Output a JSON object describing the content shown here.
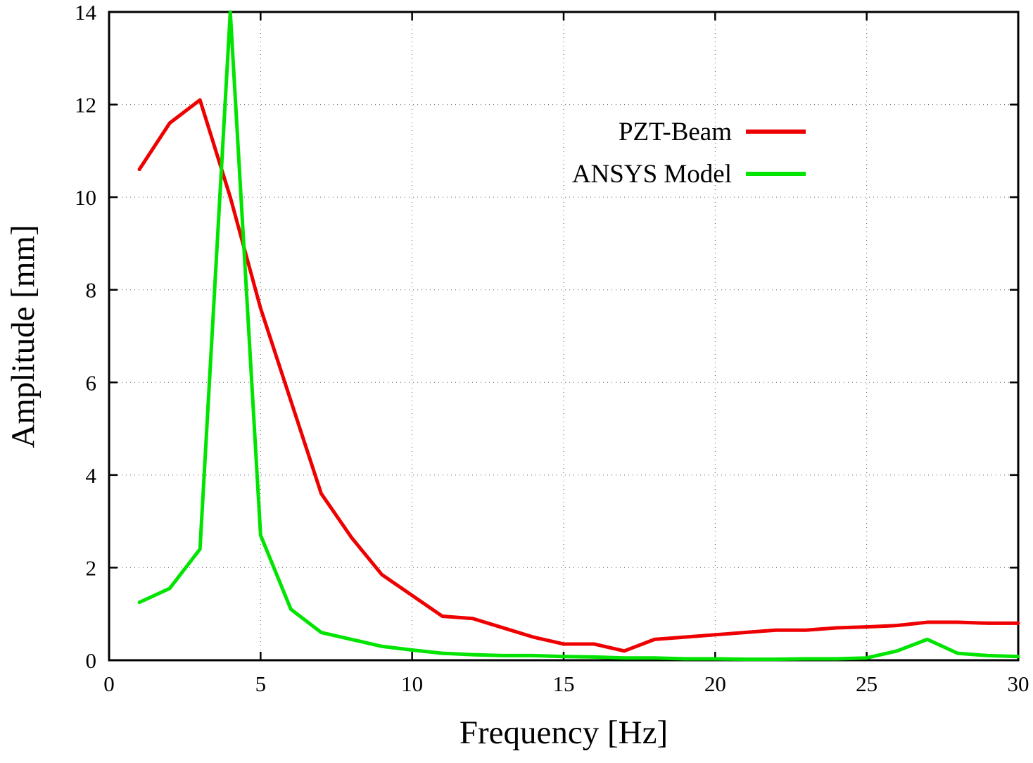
{
  "chart_data": {
    "type": "line",
    "title": "",
    "xlabel": "Frequency [Hz]",
    "ylabel": "Amplitude [mm]",
    "xlim": [
      0,
      30
    ],
    "ylim": [
      0,
      14
    ],
    "xticks": [
      0,
      5,
      10,
      15,
      20,
      25,
      30
    ],
    "yticks": [
      0,
      2,
      4,
      6,
      8,
      10,
      12,
      14
    ],
    "grid": true,
    "legend_position": "top-right-inside",
    "x": [
      1,
      2,
      3,
      4,
      5,
      6,
      7,
      8,
      9,
      10,
      11,
      12,
      13,
      14,
      15,
      16,
      17,
      18,
      19,
      20,
      21,
      22,
      23,
      24,
      25,
      26,
      27,
      28,
      29,
      30
    ],
    "series": [
      {
        "name": "PZT-Beam",
        "color": "#ee0000",
        "values": [
          10.6,
          11.6,
          12.1,
          10.0,
          7.6,
          5.6,
          3.6,
          2.65,
          1.85,
          1.4,
          0.95,
          0.9,
          0.7,
          0.5,
          0.35,
          0.35,
          0.2,
          0.45,
          0.5,
          0.55,
          0.6,
          0.65,
          0.65,
          0.7,
          0.72,
          0.75,
          0.82,
          0.82,
          0.8,
          0.8
        ]
      },
      {
        "name": "ANSYS Model",
        "color": "#00e400",
        "values": [
          1.25,
          1.55,
          2.4,
          14.0,
          2.7,
          1.1,
          0.6,
          0.45,
          0.3,
          0.22,
          0.15,
          0.12,
          0.1,
          0.1,
          0.08,
          0.07,
          0.05,
          0.05,
          0.03,
          0.03,
          0.02,
          0.02,
          0.03,
          0.03,
          0.05,
          0.2,
          0.45,
          0.15,
          0.1,
          0.08
        ]
      }
    ]
  }
}
